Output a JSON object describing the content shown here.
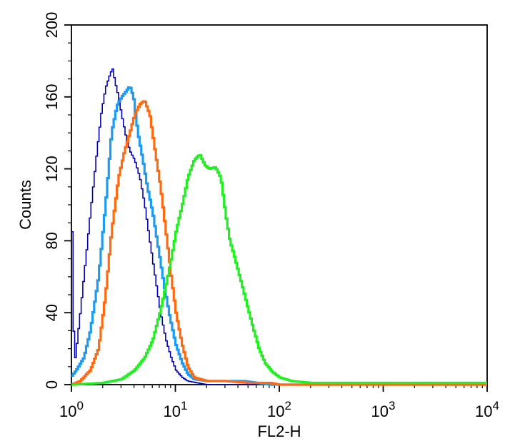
{
  "chart_data": {
    "type": "line",
    "xlabel": "FL2-H",
    "ylabel": "Counts",
    "xscale": "log",
    "xlim": [
      1,
      10000
    ],
    "ylim": [
      0,
      200
    ],
    "x_ticks": [
      {
        "value": 1,
        "base": "10",
        "exp": "0"
      },
      {
        "value": 10,
        "base": "10",
        "exp": "1"
      },
      {
        "value": 100,
        "base": "10",
        "exp": "2"
      },
      {
        "value": 1000,
        "base": "10",
        "exp": "3"
      },
      {
        "value": 10000,
        "base": "10",
        "exp": "4"
      }
    ],
    "y_ticks": [
      {
        "value": 0,
        "label": "0"
      },
      {
        "value": 40,
        "label": "40"
      },
      {
        "value": 80,
        "label": "80"
      },
      {
        "value": 120,
        "label": "120"
      },
      {
        "value": 160,
        "label": "160"
      },
      {
        "value": 200,
        "label": "200"
      }
    ],
    "grid": false,
    "legend": "none",
    "series": [
      {
        "color": "#0000b0",
        "x": [
          1.0,
          1.05,
          1.1,
          1.2,
          1.3,
          1.5,
          1.7,
          1.9,
          2.1,
          2.3,
          2.45,
          2.6,
          2.8,
          3.0,
          3.3,
          3.6,
          4.0,
          4.5,
          5.0,
          5.6,
          6.3,
          7.1,
          8.0,
          9.0,
          10.0,
          11.5,
          13,
          16,
          20
        ],
        "y": [
          85,
          10,
          20,
          40,
          60,
          95,
          125,
          150,
          165,
          172,
          176,
          168,
          160,
          150,
          138,
          130,
          125,
          115,
          100,
          80,
          60,
          40,
          25,
          15,
          8,
          4,
          2,
          1,
          0
        ]
      },
      {
        "color": "#1e9bf0",
        "x": [
          1.0,
          1.1,
          1.3,
          1.5,
          1.8,
          2.1,
          2.4,
          2.7,
          3.0,
          3.3,
          3.6,
          3.9,
          4.3,
          4.8,
          5.3,
          6.0,
          6.8,
          7.7,
          8.7,
          10,
          11.5,
          13,
          15,
          20,
          30,
          45,
          60,
          80
        ],
        "y": [
          5,
          8,
          15,
          30,
          60,
          100,
          140,
          155,
          160,
          163,
          166,
          160,
          140,
          125,
          110,
          95,
          75,
          55,
          38,
          22,
          12,
          6,
          3,
          2,
          2,
          2,
          1,
          0
        ]
      },
      {
        "color": "#ff6a10",
        "x": [
          1.0,
          1.2,
          1.5,
          1.8,
          2.1,
          2.4,
          2.8,
          3.2,
          3.6,
          4.0,
          4.5,
          5.0,
          5.6,
          6.3,
          7.1,
          8.0,
          9.0,
          10,
          11.5,
          13,
          15,
          20,
          30,
          50,
          80,
          100
        ],
        "y": [
          0,
          2,
          8,
          20,
          50,
          85,
          115,
          130,
          140,
          150,
          156,
          158,
          150,
          130,
          110,
          85,
          60,
          40,
          22,
          10,
          4,
          2,
          2,
          1,
          1,
          0
        ]
      },
      {
        "color": "#22ee22",
        "x": [
          1.0,
          2,
          3,
          4,
          5,
          6,
          7,
          8,
          9,
          10,
          11.5,
          13,
          15,
          17,
          19,
          21,
          24,
          27,
          30,
          33,
          37,
          42,
          48,
          55,
          63,
          72,
          85,
          100,
          130,
          200,
          400,
          1000,
          10000
        ],
        "y": [
          0,
          1,
          3,
          8,
          15,
          25,
          40,
          55,
          70,
          85,
          100,
          115,
          125,
          128,
          122,
          120,
          121,
          115,
          95,
          80,
          70,
          58,
          45,
          32,
          20,
          12,
          7,
          4,
          2,
          1,
          1,
          1,
          1
        ]
      }
    ]
  }
}
